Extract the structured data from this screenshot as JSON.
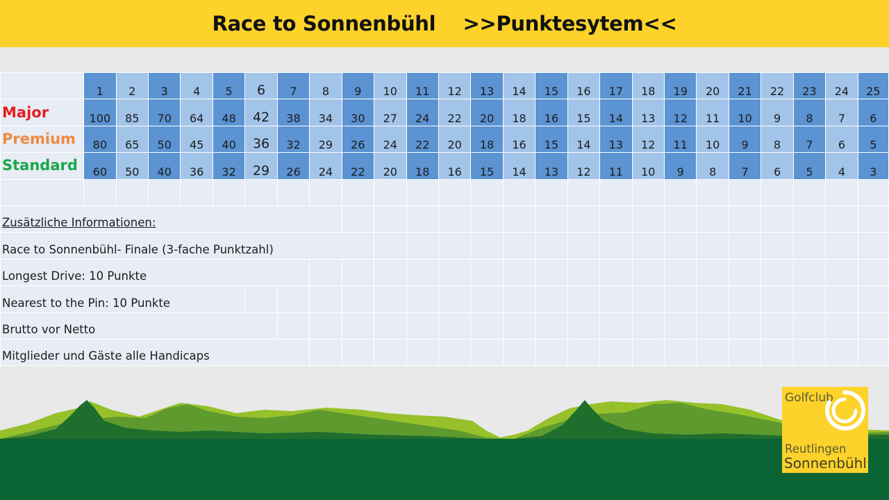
{
  "header": {
    "title": "Race to Sonnenbühl    >>Punktesytem<<"
  },
  "table": {
    "positions": [
      "1",
      "2",
      "3",
      "4",
      "5",
      "6",
      "7",
      "8",
      "9",
      "10",
      "11",
      "12",
      "13",
      "14",
      "15",
      "16",
      "17",
      "18",
      "19",
      "20",
      "21",
      "22",
      "23",
      "24",
      "25"
    ],
    "rows": [
      {
        "label": "Major",
        "color": "#e41e1e",
        "values": [
          "100",
          "85",
          "70",
          "64",
          "48",
          "42",
          "38",
          "34",
          "30",
          "27",
          "24",
          "22",
          "20",
          "18",
          "16",
          "15",
          "14",
          "13",
          "12",
          "11",
          "10",
          "9",
          "8",
          "7",
          "6"
        ]
      },
      {
        "label": "Premium",
        "color": "#ee8a3d",
        "values": [
          "80",
          "65",
          "50",
          "45",
          "40",
          "36",
          "32",
          "29",
          "26",
          "24",
          "22",
          "20",
          "18",
          "16",
          "15",
          "14",
          "13",
          "12",
          "11",
          "10",
          "9",
          "8",
          "7",
          "6",
          "5"
        ]
      },
      {
        "label": "Standard",
        "color": "#19a84c",
        "values": [
          "60",
          "50",
          "40",
          "36",
          "32",
          "29",
          "26",
          "24",
          "22",
          "20",
          "18",
          "16",
          "15",
          "14",
          "13",
          "12",
          "11",
          "10",
          "9",
          "8",
          "7",
          "6",
          "5",
          "4",
          "3"
        ]
      }
    ],
    "colors": {
      "dark": "#5b93d3",
      "light": "#a2c4e9",
      "empty": "#e8ecf5"
    }
  },
  "info": {
    "heading": "Zusätzliche Informationen:",
    "lines": [
      "Race to Sonnenbühl- Finale (3-fache Punktzahl)",
      "Longest Drive: 10 Punkte",
      "Nearest to the Pin: 10 Punkte",
      "Brutto vor Netto",
      "Mitglieder und Gäste alle Handicaps"
    ]
  },
  "logo": {
    "line1": "Golfclub",
    "line2": "Reutlingen",
    "line3": "Sonnenbühl",
    "color": "#fdd22a"
  }
}
